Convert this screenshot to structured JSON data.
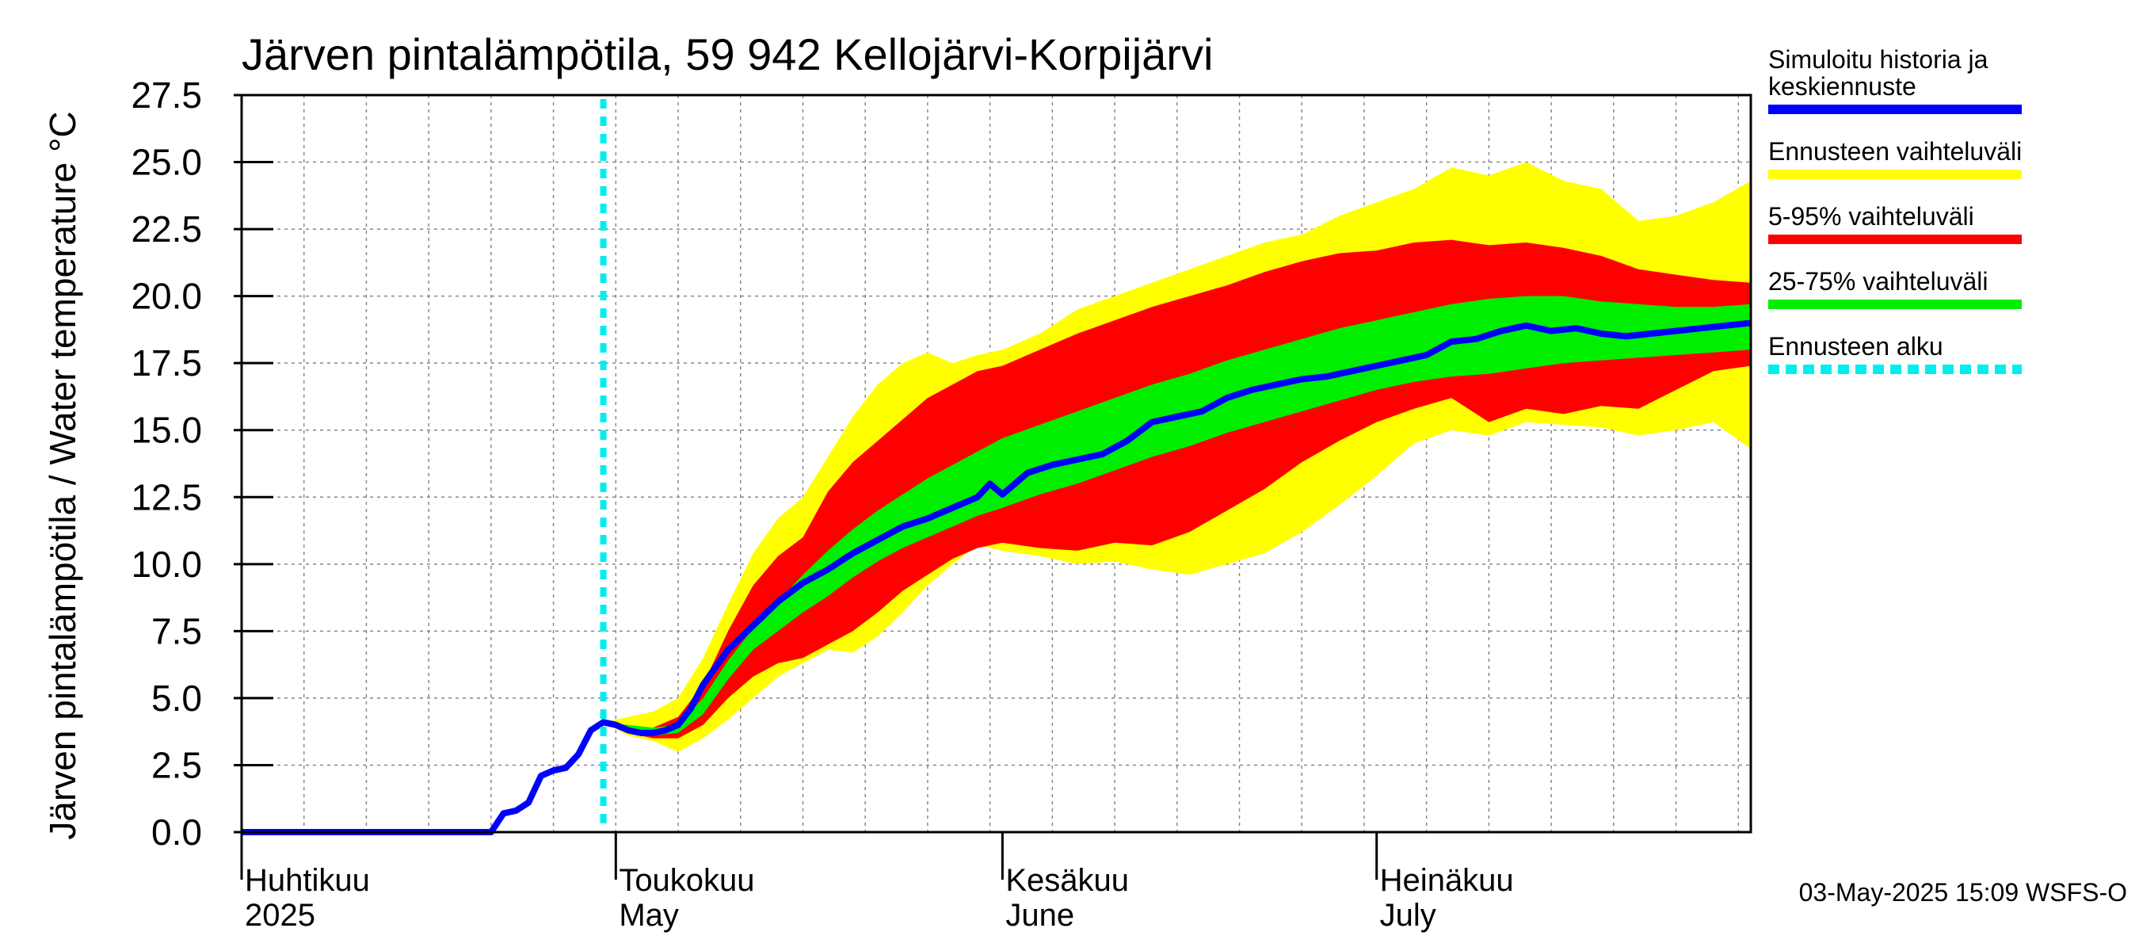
{
  "chart_data": {
    "type": "area",
    "title": "Järven pintalämpötila, 59 942 Kellojärvi-Korpijärvi",
    "ylabel": "Järven pintalämpötila / Water temperature °C",
    "ylim": [
      0,
      27.5
    ],
    "yticks": [
      0.0,
      2.5,
      5.0,
      7.5,
      10.0,
      12.5,
      15.0,
      17.5,
      20.0,
      22.5,
      25.0,
      27.5
    ],
    "ytick_labels": [
      "0.0",
      "2.5",
      "5.0",
      "7.5",
      "10.0",
      "12.5",
      "15.0",
      "17.5",
      "20.0",
      "22.5",
      "25.0",
      "27.5"
    ],
    "x_range": [
      "2025-04-01",
      "2025-07-31"
    ],
    "x_grid_step_days": 5,
    "grid": true,
    "month_labels": [
      {
        "date": "2025-04-01",
        "fi": "Huhtikuu",
        "en": "2025"
      },
      {
        "date": "2025-05-01",
        "fi": "Toukokuu",
        "en": "May"
      },
      {
        "date": "2025-06-01",
        "fi": "Kesäkuu",
        "en": "June"
      },
      {
        "date": "2025-07-01",
        "fi": "Heinäkuu",
        "en": "July"
      }
    ],
    "forecast_start": "2025-04-30",
    "series": [
      {
        "name": "Simuloitu historia ja keskiennuste",
        "type": "line",
        "color": "#0000ff",
        "x": [
          "2025-04-01",
          "2025-04-05",
          "2025-04-10",
          "2025-04-15",
          "2025-04-21",
          "2025-04-22",
          "2025-04-23",
          "2025-04-24",
          "2025-04-25",
          "2025-04-26",
          "2025-04-27",
          "2025-04-28",
          "2025-04-29",
          "2025-04-30",
          "2025-05-01",
          "2025-05-02",
          "2025-05-03",
          "2025-05-04",
          "2025-05-05",
          "2025-05-06",
          "2025-05-07",
          "2025-05-08",
          "2025-05-10",
          "2025-05-12",
          "2025-05-14",
          "2025-05-16",
          "2025-05-18",
          "2025-05-20",
          "2025-05-22",
          "2025-05-24",
          "2025-05-26",
          "2025-05-28",
          "2025-05-30",
          "2025-05-31",
          "2025-06-01",
          "2025-06-03",
          "2025-06-05",
          "2025-06-07",
          "2025-06-09",
          "2025-06-11",
          "2025-06-13",
          "2025-06-15",
          "2025-06-17",
          "2025-06-19",
          "2025-06-21",
          "2025-06-23",
          "2025-06-25",
          "2025-06-27",
          "2025-06-29",
          "2025-07-01",
          "2025-07-03",
          "2025-07-05",
          "2025-07-07",
          "2025-07-09",
          "2025-07-11",
          "2025-07-13",
          "2025-07-15",
          "2025-07-17",
          "2025-07-19",
          "2025-07-21",
          "2025-07-23",
          "2025-07-25",
          "2025-07-27",
          "2025-07-29",
          "2025-07-31"
        ],
        "values": [
          0,
          0,
          0,
          0,
          0,
          0.7,
          0.8,
          1.1,
          2.1,
          2.3,
          2.4,
          2.9,
          3.8,
          4.1,
          4.0,
          3.8,
          3.7,
          3.7,
          3.8,
          4.0,
          4.6,
          5.5,
          6.8,
          7.7,
          8.6,
          9.3,
          9.8,
          10.4,
          10.9,
          11.4,
          11.7,
          12.1,
          12.5,
          13.0,
          12.6,
          13.4,
          13.7,
          13.9,
          14.1,
          14.6,
          15.3,
          15.5,
          15.7,
          16.2,
          16.5,
          16.7,
          16.9,
          17.0,
          17.2,
          17.4,
          17.6,
          17.8,
          18.3,
          18.4,
          18.7,
          18.9,
          18.7,
          18.8,
          18.6,
          18.5,
          18.6,
          18.7,
          18.8,
          18.9,
          19.0
        ]
      },
      {
        "name": "Ennusteen vaihteluväli",
        "type": "band",
        "color": "#ffff00",
        "x": [
          "2025-04-30",
          "2025-05-02",
          "2025-05-04",
          "2025-05-06",
          "2025-05-08",
          "2025-05-10",
          "2025-05-12",
          "2025-05-14",
          "2025-05-16",
          "2025-05-18",
          "2025-05-20",
          "2025-05-22",
          "2025-05-24",
          "2025-05-26",
          "2025-05-28",
          "2025-05-30",
          "2025-06-01",
          "2025-06-04",
          "2025-06-07",
          "2025-06-10",
          "2025-06-13",
          "2025-06-16",
          "2025-06-19",
          "2025-06-22",
          "2025-06-25",
          "2025-06-28",
          "2025-07-01",
          "2025-07-04",
          "2025-07-07",
          "2025-07-10",
          "2025-07-13",
          "2025-07-16",
          "2025-07-19",
          "2025-07-22",
          "2025-07-25",
          "2025-07-28",
          "2025-07-31"
        ],
        "lower": [
          4.1,
          3.6,
          3.4,
          3.0,
          3.5,
          4.2,
          5.0,
          5.8,
          6.3,
          6.8,
          6.7,
          7.3,
          8.2,
          9.2,
          10.0,
          10.7,
          10.5,
          10.3,
          10.0,
          10.1,
          9.8,
          9.6,
          10.0,
          10.4,
          11.2,
          12.2,
          13.3,
          14.5,
          15.0,
          14.8,
          15.3,
          15.2,
          15.1,
          14.8,
          15.0,
          15.3,
          14.3
        ],
        "upper": [
          4.1,
          4.3,
          4.5,
          5.0,
          6.5,
          8.5,
          10.4,
          11.7,
          12.5,
          14.0,
          15.5,
          16.7,
          17.5,
          17.9,
          17.5,
          17.8,
          18.0,
          18.6,
          19.5,
          20.0,
          20.5,
          21.0,
          21.5,
          22.0,
          22.3,
          23.0,
          23.5,
          24.0,
          24.8,
          24.5,
          25.0,
          24.3,
          24.0,
          22.8,
          23.0,
          23.5,
          24.3
        ]
      },
      {
        "name": "5-95% vaihteluväli",
        "type": "band",
        "color": "#ff0000",
        "x": [
          "2025-04-30",
          "2025-05-02",
          "2025-05-04",
          "2025-05-06",
          "2025-05-08",
          "2025-05-10",
          "2025-05-12",
          "2025-05-14",
          "2025-05-16",
          "2025-05-18",
          "2025-05-20",
          "2025-05-22",
          "2025-05-24",
          "2025-05-26",
          "2025-05-28",
          "2025-05-30",
          "2025-06-01",
          "2025-06-04",
          "2025-06-07",
          "2025-06-10",
          "2025-06-13",
          "2025-06-16",
          "2025-06-19",
          "2025-06-22",
          "2025-06-25",
          "2025-06-28",
          "2025-07-01",
          "2025-07-04",
          "2025-07-07",
          "2025-07-10",
          "2025-07-13",
          "2025-07-16",
          "2025-07-19",
          "2025-07-22",
          "2025-07-25",
          "2025-07-28",
          "2025-07-31"
        ],
        "lower": [
          4.1,
          3.7,
          3.5,
          3.5,
          4.0,
          5.0,
          5.8,
          6.3,
          6.5,
          7.0,
          7.5,
          8.2,
          9.0,
          9.6,
          10.2,
          10.6,
          10.8,
          10.6,
          10.5,
          10.8,
          10.7,
          11.2,
          12.0,
          12.8,
          13.8,
          14.6,
          15.3,
          15.8,
          16.2,
          15.3,
          15.8,
          15.6,
          15.9,
          15.8,
          16.5,
          17.2,
          17.4
        ],
        "upper": [
          4.1,
          3.9,
          3.9,
          4.3,
          5.5,
          7.5,
          9.2,
          10.3,
          11.0,
          12.7,
          13.8,
          14.6,
          15.4,
          16.2,
          16.7,
          17.2,
          17.4,
          18.0,
          18.6,
          19.1,
          19.6,
          20.0,
          20.4,
          20.9,
          21.3,
          21.6,
          21.7,
          22.0,
          22.1,
          21.9,
          22.0,
          21.8,
          21.5,
          21.0,
          20.8,
          20.6,
          20.5
        ]
      },
      {
        "name": "25-75% vaihteluväli",
        "type": "band",
        "color": "#00ee00",
        "x": [
          "2025-04-30",
          "2025-05-02",
          "2025-05-04",
          "2025-05-06",
          "2025-05-08",
          "2025-05-10",
          "2025-05-12",
          "2025-05-14",
          "2025-05-16",
          "2025-05-18",
          "2025-05-20",
          "2025-05-22",
          "2025-05-24",
          "2025-05-26",
          "2025-05-28",
          "2025-05-30",
          "2025-06-01",
          "2025-06-04",
          "2025-06-07",
          "2025-06-10",
          "2025-06-13",
          "2025-06-16",
          "2025-06-19",
          "2025-06-22",
          "2025-06-25",
          "2025-06-28",
          "2025-07-01",
          "2025-07-04",
          "2025-07-07",
          "2025-07-10",
          "2025-07-13",
          "2025-07-16",
          "2025-07-19",
          "2025-07-22",
          "2025-07-25",
          "2025-07-28",
          "2025-07-31"
        ],
        "lower": [
          4.1,
          3.8,
          3.6,
          3.7,
          4.4,
          5.7,
          6.8,
          7.5,
          8.2,
          8.8,
          9.5,
          10.1,
          10.6,
          11.0,
          11.4,
          11.8,
          12.1,
          12.6,
          13.0,
          13.5,
          14.0,
          14.4,
          14.9,
          15.3,
          15.7,
          16.1,
          16.5,
          16.8,
          17.0,
          17.1,
          17.3,
          17.5,
          17.6,
          17.7,
          17.8,
          17.9,
          18.0
        ],
        "upper": [
          4.1,
          4.0,
          3.9,
          4.0,
          5.0,
          6.4,
          7.6,
          8.6,
          9.6,
          10.5,
          11.3,
          12.0,
          12.6,
          13.2,
          13.7,
          14.2,
          14.7,
          15.2,
          15.7,
          16.2,
          16.7,
          17.1,
          17.6,
          18.0,
          18.4,
          18.8,
          19.1,
          19.4,
          19.7,
          19.9,
          20.0,
          20.0,
          19.8,
          19.7,
          19.6,
          19.6,
          19.7
        ]
      }
    ]
  },
  "legend": {
    "items": [
      {
        "label_lines": [
          "Simuloitu historia ja",
          "keskiennuste"
        ],
        "color": "#0000ff",
        "style": "solid"
      },
      {
        "label_lines": [
          "Ennusteen vaihteluväli"
        ],
        "color": "#ffff00",
        "style": "solid"
      },
      {
        "label_lines": [
          "5-95% vaihteluväli"
        ],
        "color": "#ff0000",
        "style": "solid"
      },
      {
        "label_lines": [
          "25-75% vaihteluväli"
        ],
        "color": "#00ee00",
        "style": "solid"
      },
      {
        "label_lines": [
          "Ennusteen alku"
        ],
        "color": "#00eeee",
        "style": "dashed"
      }
    ]
  },
  "footer": {
    "timestamp": "03-May-2025 15:09 WSFS-O"
  }
}
